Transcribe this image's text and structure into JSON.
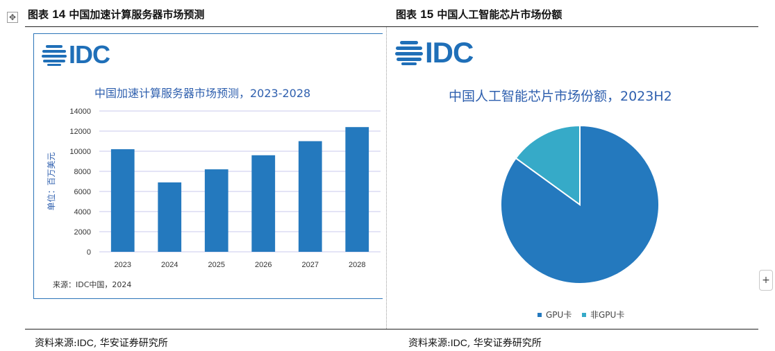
{
  "left_figure": {
    "label": "图表",
    "number": "14",
    "title": "中国加速计算服务器市场预测",
    "logo_text": "IDC",
    "chart_title": "中国加速计算服务器市场预测，2023-2028",
    "source_note": "来源：IDC中国，2024",
    "footer_source": {
      "prefix": "资料来源:",
      "org": "IDC",
      "rest": ", 华安证券研究所"
    }
  },
  "right_figure": {
    "label": "图表",
    "number": "15",
    "title": "中国人工智能芯片市场份额",
    "logo_text": "IDC",
    "chart_title": "中国人工智能芯片市场份额，2023H2",
    "footer_source": {
      "prefix": "资料来源:",
      "org": "IDC",
      "rest": ", 华安证券研究所"
    }
  },
  "colors": {
    "bar": "#2479be",
    "gpu": "#2479be",
    "non_gpu": "#36aac8",
    "title_blue": "#2e5fae",
    "logo_blue": "#1f6fb8",
    "grid": "#c9c9ee"
  },
  "chart_data": [
    {
      "type": "bar",
      "title": "中国加速计算服务器市场预测，2023-2028",
      "categories": [
        "2023",
        "2024",
        "2025",
        "2026",
        "2027",
        "2028"
      ],
      "values": [
        10200,
        6900,
        8200,
        9600,
        11000,
        12400
      ],
      "ylabel": "单位：百万美元",
      "ylim": [
        0,
        14000
      ],
      "yticks": [
        "0",
        "2000",
        "4000",
        "6000",
        "8000",
        "10000",
        "12000",
        "14000"
      ],
      "grid": true
    },
    {
      "type": "pie",
      "title": "中国人工智能芯片市场份额，2023H2",
      "labels": [
        "GPU卡",
        "非GPU卡"
      ],
      "values": [
        85,
        15
      ],
      "legend": "bottom"
    }
  ]
}
